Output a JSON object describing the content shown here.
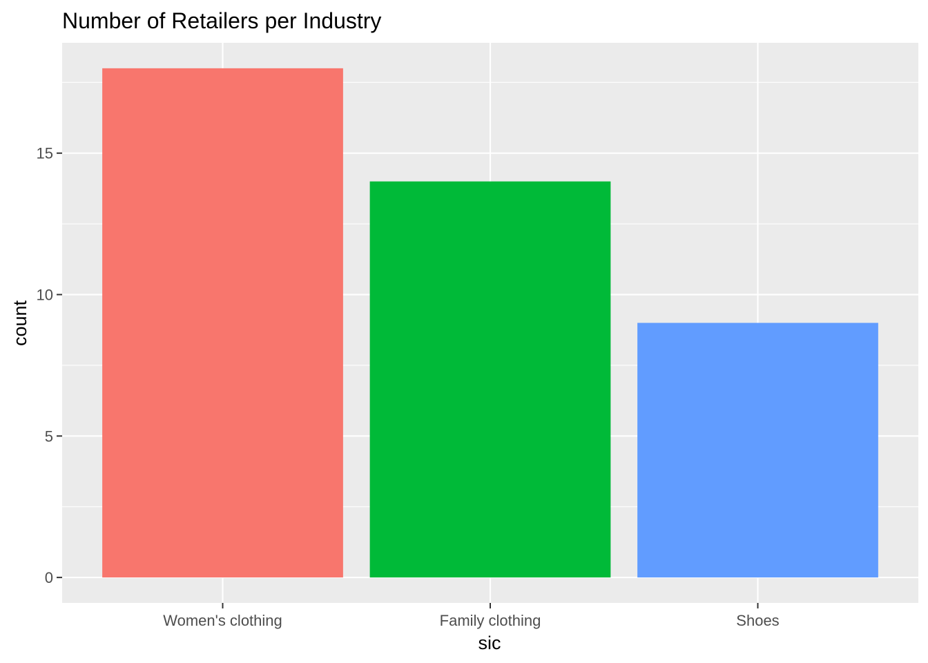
{
  "chart_data": {
    "type": "bar",
    "title": "Number of Retailers per Industry",
    "xlabel": "sic",
    "ylabel": "count",
    "categories": [
      "Women's clothing",
      "Family clothing",
      "Shoes"
    ],
    "values": [
      18,
      14,
      9
    ],
    "colors": [
      "#F8766D",
      "#00BA38",
      "#619CFF"
    ],
    "ylim": [
      -0.9,
      18.9
    ],
    "yticks": [
      0,
      5,
      10,
      15
    ],
    "ytick_labels": [
      "0",
      "5",
      "10",
      "15"
    ],
    "y_minor_ticks": [
      2.5,
      7.5,
      12.5,
      17.5
    ],
    "grid": true,
    "legend": "none"
  },
  "theme": {
    "panel_background": "#EBEBEB",
    "grid_color": "#FFFFFF",
    "tick_color": "#333333",
    "tick_label_color": "#4D4D4D"
  }
}
